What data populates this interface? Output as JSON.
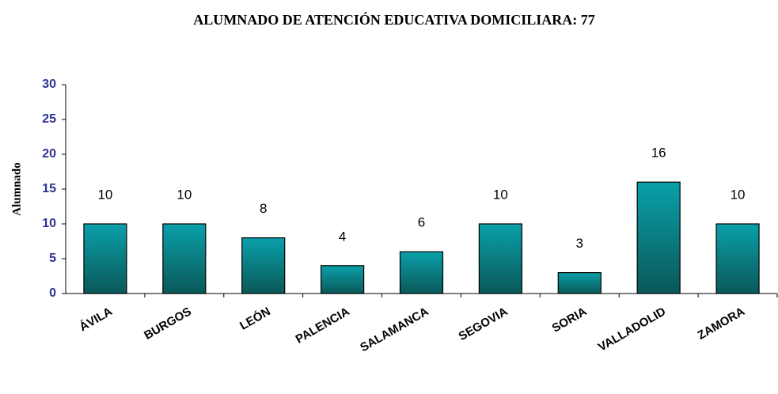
{
  "chart_data": {
    "type": "bar",
    "title": "ALUMNADO DE ATENCIÓN EDUCATIVA DOMICILIARA: 77",
    "y_label": "Alumnado",
    "categories": [
      "ÁVILA",
      "BURGOS",
      "LEÓN",
      "PALENCIA",
      "SALAMANCA",
      "SEGOVIA",
      "SORIA",
      "VALLADOLID",
      "ZAMORA"
    ],
    "values": [
      10,
      10,
      8,
      4,
      6,
      10,
      3,
      16,
      10
    ],
    "color": "#0a8f96",
    "ylim": [
      0,
      30
    ],
    "yticks": [
      0,
      5,
      10,
      15,
      20,
      25,
      30
    ],
    "grid": false
  }
}
